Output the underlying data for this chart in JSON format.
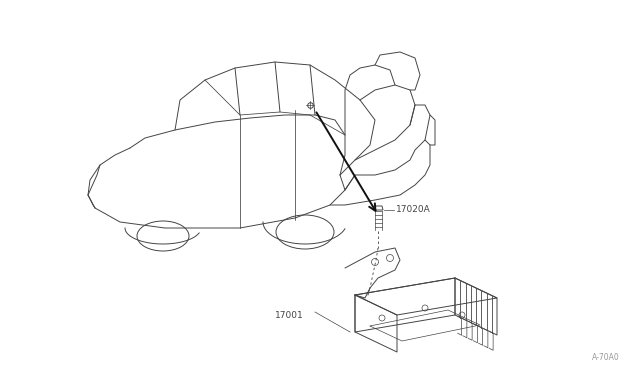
{
  "bg_color": "#ffffff",
  "label_17020A": "17020A",
  "label_17001": "17001",
  "diagram_ref": "A-70A0",
  "car_color": "#444444",
  "part_color": "#444444",
  "arrow_color": "#111111",
  "text_color": "#444444",
  "lw": 0.7,
  "fs": 6.5
}
